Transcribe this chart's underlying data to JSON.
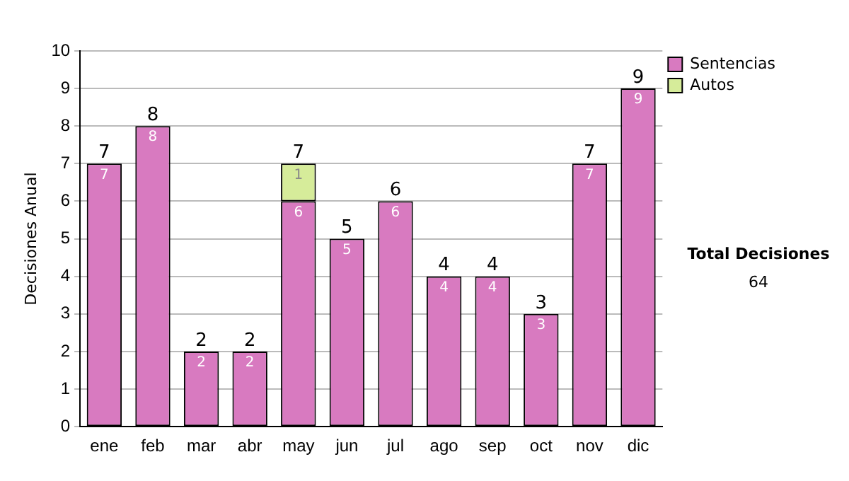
{
  "chart_data": {
    "type": "bar",
    "stacked": true,
    "ylabel": "Decisiones Anual",
    "categories": [
      "ene",
      "feb",
      "mar",
      "abr",
      "may",
      "jun",
      "jul",
      "ago",
      "sep",
      "oct",
      "nov",
      "dic"
    ],
    "series": [
      {
        "name": "Sentencias",
        "color": "#d87ac0",
        "values": [
          7,
          8,
          2,
          2,
          6,
          5,
          6,
          4,
          4,
          3,
          7,
          9
        ],
        "value_labels": [
          "7",
          "8",
          "2",
          "2",
          "6",
          "5",
          "6",
          "4",
          "4",
          "3",
          "7",
          "9"
        ]
      },
      {
        "name": "Autos",
        "color": "#d6ec9a",
        "values": [
          0,
          0,
          0,
          0,
          1,
          0,
          0,
          0,
          0,
          0,
          0,
          0
        ],
        "value_labels": [
          null,
          null,
          null,
          null,
          "1",
          null,
          null,
          null,
          null,
          null,
          null,
          null
        ]
      }
    ],
    "totals": [
      "7",
      "8",
      "2",
      "2",
      "7",
      "5",
      "6",
      "4",
      "4",
      "3",
      "7",
      "9"
    ],
    "ylim": [
      0,
      10
    ],
    "yticks": [
      0,
      1,
      2,
      3,
      4,
      5,
      6,
      7,
      8,
      9,
      10
    ],
    "grid": "y",
    "legend": "right",
    "annotations": [
      "Total Decisiones",
      "64"
    ]
  }
}
